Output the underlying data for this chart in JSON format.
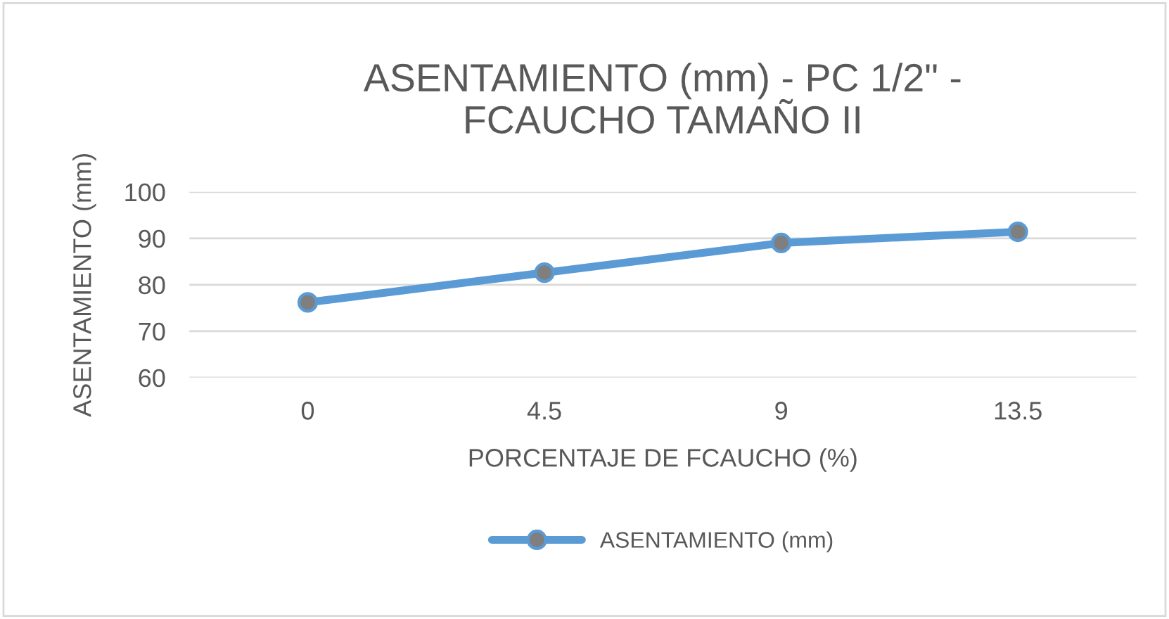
{
  "chart_data": {
    "type": "line",
    "title": "ASENTAMIENTO (mm) - PC 1/2\" -\nFCAUCHO TAMAÑO II",
    "xlabel": "PORCENTAJE DE FCAUCHO (%)",
    "ylabel": "ASENTAMIENTO (mm)",
    "categories": [
      "0",
      "4.5",
      "9",
      "13.5"
    ],
    "series": [
      {
        "name": "ASENTAMIENTO (mm)",
        "color": "#5b9bd5",
        "values": [
          76.2,
          82.6,
          89.0,
          91.4
        ]
      }
    ],
    "ylim": [
      60,
      100
    ],
    "yticks": [
      60,
      70,
      80,
      90,
      100
    ],
    "grid": "y",
    "legend": "bottom",
    "marker": "circle",
    "line_style": "solid"
  }
}
